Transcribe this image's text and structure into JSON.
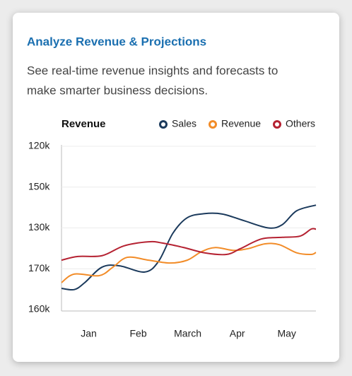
{
  "header": {
    "title": "Analyze Revenue & Projections",
    "description_lines": [
      "See real-time revenue insights and forecasts to",
      "make smarter business decisions."
    ]
  },
  "chart_data": {
    "type": "line",
    "title": "Revenue",
    "ytick_labels": [
      "160k",
      "170k",
      "130k",
      "150k",
      "120k"
    ],
    "ylim": [
      0,
      4
    ],
    "yticks": [
      0,
      1,
      2,
      3,
      4
    ],
    "xlim": [
      0.45,
      5.59
    ],
    "xticks": [
      {
        "value": 1,
        "label": "Jan"
      },
      {
        "value": 2,
        "label": "Feb"
      },
      {
        "value": 3,
        "label": "March"
      },
      {
        "value": 4,
        "label": "Apr"
      },
      {
        "value": 5,
        "label": "May"
      }
    ],
    "grid": true,
    "series": [
      {
        "name": "Sales",
        "color": "#1b3a5c",
        "x": [
          0.45,
          0.71,
          0.92,
          1.27,
          1.63,
          2.13,
          2.41,
          2.7,
          2.99,
          3.34,
          3.7,
          4.13,
          4.63,
          4.91,
          5.2,
          5.59
        ],
        "values": [
          0.52,
          0.49,
          0.66,
          1.04,
          1.07,
          0.92,
          1.18,
          1.87,
          2.25,
          2.35,
          2.34,
          2.18,
          2.0,
          2.08,
          2.42,
          2.56
        ]
      },
      {
        "name": "Revenue",
        "color": "#f28c28",
        "x": [
          0.45,
          0.71,
          1.21,
          1.49,
          1.78,
          2.21,
          2.64,
          2.99,
          3.28,
          3.56,
          3.92,
          4.21,
          4.56,
          4.85,
          5.2,
          5.49,
          5.59
        ],
        "values": [
          0.66,
          0.87,
          0.83,
          1.04,
          1.28,
          1.21,
          1.14,
          1.21,
          1.42,
          1.52,
          1.45,
          1.49,
          1.61,
          1.59,
          1.39,
          1.35,
          1.4
        ]
      },
      {
        "name": "Others",
        "color": "#b52232",
        "x": [
          0.45,
          0.78,
          1.27,
          1.71,
          2.21,
          2.49,
          2.92,
          3.34,
          3.78,
          4.06,
          4.49,
          4.91,
          5.27,
          5.49,
          5.59
        ],
        "values": [
          1.21,
          1.3,
          1.32,
          1.56,
          1.66,
          1.63,
          1.52,
          1.39,
          1.35,
          1.49,
          1.73,
          1.77,
          1.8,
          1.97,
          1.97
        ]
      }
    ]
  }
}
